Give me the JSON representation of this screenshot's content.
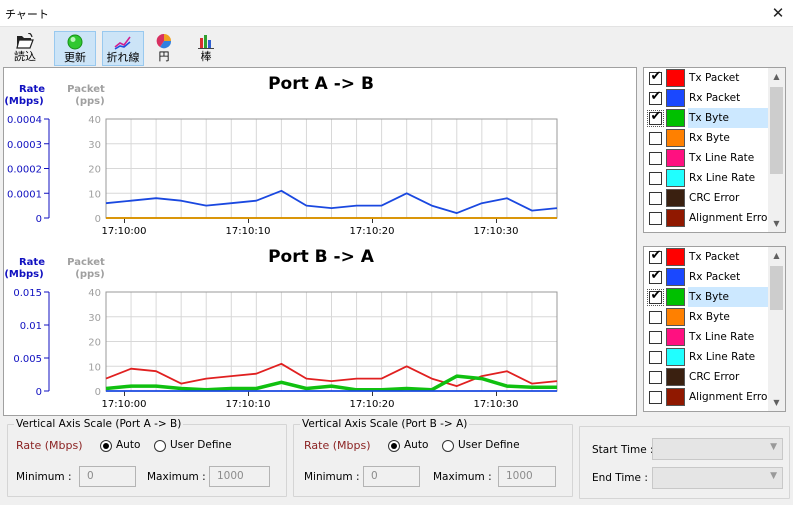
{
  "window": {
    "title": "チャート",
    "close_glyph": "✕"
  },
  "toolbar": {
    "buttons": [
      {
        "label": "読込",
        "icon": "folder-open-icon",
        "active": false
      },
      {
        "label": "更新",
        "icon": "refresh-icon",
        "active": true
      },
      {
        "label": "折れ線",
        "icon": "line-chart-icon",
        "active": true
      },
      {
        "label": "円",
        "icon": "pie-chart-icon",
        "active": false
      },
      {
        "label": "棒",
        "icon": "bar-chart-icon",
        "active": false
      }
    ]
  },
  "chart_data": [
    {
      "type": "line",
      "title": "Port A -> B",
      "y_left": {
        "label_line1": "Rate",
        "label_line2": "(Mbps)",
        "ticks": [
          "0.0004",
          "0.0003",
          "0.0002",
          "0.0001",
          "0"
        ],
        "color": "#1010c0"
      },
      "y_right": {
        "label_line1": "Packet",
        "label_line2": "(pps)",
        "ticks": [
          "40",
          "30",
          "20",
          "10",
          "0"
        ],
        "ylim": [
          0,
          40
        ],
        "color": "#a0a0a0"
      },
      "x_ticks": [
        "17:10:00",
        "17:10:10",
        "17:10:20",
        "17:10:30"
      ],
      "series": [
        {
          "name": "Rx Packet",
          "color": "#1a48e0",
          "values": [
            6,
            7,
            8,
            7,
            5,
            6,
            7,
            11,
            5,
            4,
            5,
            5,
            10,
            5,
            2,
            6,
            8,
            3,
            4
          ]
        },
        {
          "name": "Tx Packet",
          "color": "#e01010",
          "values": [
            0,
            0,
            0,
            0,
            0,
            0,
            0,
            0,
            0,
            0,
            0,
            0,
            0,
            0,
            0,
            0,
            0,
            0,
            0
          ]
        },
        {
          "name": "Tx Byte",
          "color": "#d8a000",
          "values": [
            0,
            0,
            0,
            0,
            0,
            0,
            0,
            0,
            0,
            0,
            0,
            0,
            0,
            0,
            0,
            0,
            0,
            0,
            0
          ]
        }
      ]
    },
    {
      "type": "line",
      "title": "Port B -> A",
      "y_left": {
        "label_line1": "Rate",
        "label_line2": "(Mbps)",
        "ticks": [
          "0.015",
          "0.01",
          "0.005",
          "0"
        ],
        "color": "#1010c0"
      },
      "y_right": {
        "label_line1": "Packet",
        "label_line2": "(pps)",
        "ticks": [
          "40",
          "30",
          "20",
          "10",
          "0"
        ],
        "ylim": [
          0,
          40
        ],
        "color": "#a0a0a0"
      },
      "x_ticks": [
        "17:10:00",
        "17:10:10",
        "17:10:20",
        "17:10:30"
      ],
      "series": [
        {
          "name": "Tx Packet",
          "color": "#e02020",
          "values": [
            5,
            9,
            8,
            3,
            5,
            6,
            7,
            11,
            5,
            4,
            5,
            5,
            10,
            5,
            2,
            6,
            8,
            3,
            4
          ]
        },
        {
          "name": "Tx Byte",
          "color": "#10c010",
          "values": [
            1,
            2,
            2,
            1,
            0.5,
            1,
            1,
            3.5,
            1,
            2,
            0.5,
            0.5,
            1,
            0.5,
            6,
            5,
            2,
            1.5,
            1.5
          ]
        },
        {
          "name": "Rx Packet",
          "color": "#1a48e0",
          "values": [
            0,
            0,
            0,
            0,
            0,
            0,
            0,
            0,
            0,
            0,
            0,
            0,
            0,
            0,
            0,
            0,
            0,
            0,
            0
          ]
        }
      ]
    }
  ],
  "legend_lists": [
    {
      "items": [
        {
          "label": "Tx Packet",
          "color": "#ff0000",
          "checked": true,
          "selected": false
        },
        {
          "label": "Rx Packet",
          "color": "#1a48ff",
          "checked": true,
          "selected": false
        },
        {
          "label": "Tx Byte",
          "color": "#00c000",
          "checked": true,
          "selected": true
        },
        {
          "label": "Rx Byte",
          "color": "#ff8000",
          "checked": false,
          "selected": false
        },
        {
          "label": "Tx Line Rate",
          "color": "#ff1080",
          "checked": false,
          "selected": false
        },
        {
          "label": "Rx Line Rate",
          "color": "#20ffff",
          "checked": false,
          "selected": false
        },
        {
          "label": "CRC Error",
          "color": "#3a2010",
          "checked": false,
          "selected": false
        },
        {
          "label": "Alignment Error",
          "color": "#901800",
          "checked": false,
          "selected": false
        }
      ]
    },
    {
      "items": [
        {
          "label": "Tx Packet",
          "color": "#ff0000",
          "checked": true,
          "selected": false
        },
        {
          "label": "Rx Packet",
          "color": "#1a48ff",
          "checked": true,
          "selected": false
        },
        {
          "label": "Tx Byte",
          "color": "#00c000",
          "checked": true,
          "selected": true
        },
        {
          "label": "Rx Byte",
          "color": "#ff8000",
          "checked": false,
          "selected": false
        },
        {
          "label": "Tx Line Rate",
          "color": "#ff1080",
          "checked": false,
          "selected": false
        },
        {
          "label": "Rx Line Rate",
          "color": "#20ffff",
          "checked": false,
          "selected": false
        },
        {
          "label": "CRC Error",
          "color": "#3a2010",
          "checked": false,
          "selected": false
        },
        {
          "label": "Alignment Error",
          "color": "#901800",
          "checked": false,
          "selected": false
        }
      ]
    }
  ],
  "scale_ab": {
    "caption": "Vertical Axis Scale (Port A -> B)",
    "rate_label": "Rate (Mbps)",
    "auto_label": "Auto",
    "user_label": "User Define",
    "min_label": "Minimum :",
    "min_value": "0",
    "max_label": "Maximum :",
    "max_value": "1000"
  },
  "scale_ba": {
    "caption": "Vertical Axis Scale (Port B -> A)",
    "rate_label": "Rate (Mbps)",
    "auto_label": "Auto",
    "user_label": "User Define",
    "min_label": "Minimum :",
    "min_value": "0",
    "max_label": "Maximum :",
    "max_value": "1000"
  },
  "time_range": {
    "start_label": "Start Time :",
    "end_label": "End Time :"
  }
}
